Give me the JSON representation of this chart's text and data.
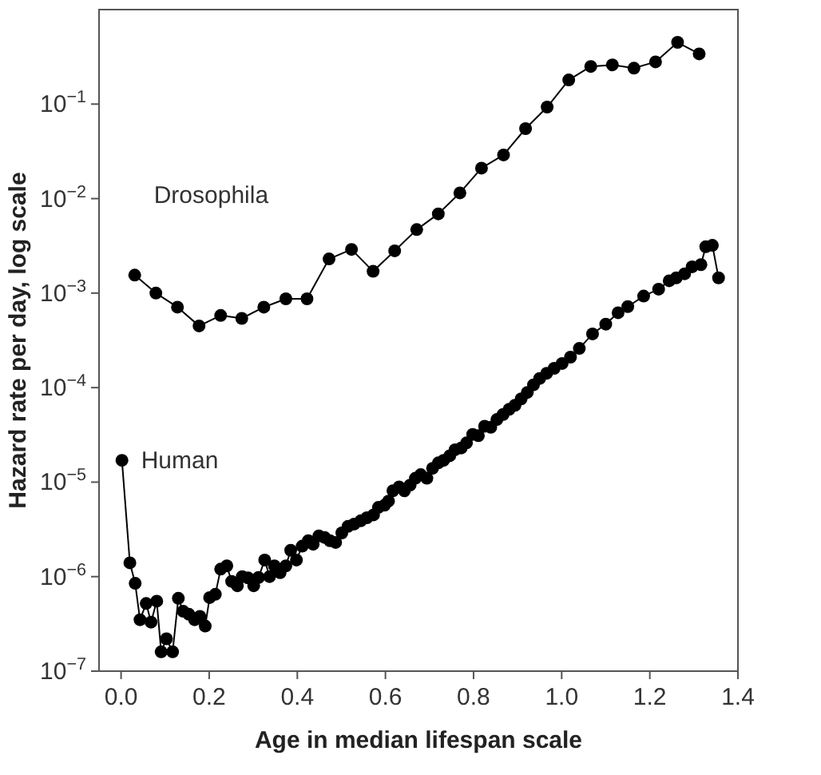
{
  "chart_data": {
    "type": "line",
    "xlabel": "Age in median lifespan scale",
    "ylabel": "Hazard rate per day, log scale",
    "log": "y",
    "marker": "circle",
    "line_style": "solid",
    "grid": false,
    "xlim": [
      -0.05,
      1.4
    ],
    "xticks": [
      {
        "value": 0,
        "label": "0.0"
      },
      0.2,
      0.4,
      0.6,
      0.8,
      {
        "value": 1,
        "label": "1.0"
      },
      1.2,
      1.4
    ],
    "ylim": [
      1e-07,
      1
    ],
    "yticks": [
      {
        "value": 1e-07,
        "label": "10$^{−7}$"
      },
      {
        "value": 1e-06,
        "label": "10$^{−6}$"
      },
      {
        "value": 1e-05,
        "label": "10$^{−5}$"
      },
      {
        "value": 0.0001,
        "label": "10$^{−4}$"
      },
      {
        "value": 0.001,
        "label": "10$^{−3}$"
      },
      {
        "value": 0.01,
        "label": "10$^{−2}$"
      },
      {
        "value": 0.1,
        "label": "10$^{−1}$"
      }
    ],
    "series": [
      {
        "name": "Drosophila",
        "color": "#000000",
        "x": [
          0.031,
          0.079,
          0.128,
          0.177,
          0.226,
          0.274,
          0.324,
          0.374,
          0.422,
          0.472,
          0.523,
          0.572,
          0.621,
          0.671,
          0.72,
          0.769,
          0.818,
          0.868,
          0.918,
          0.967,
          1.016,
          1.066,
          1.115,
          1.164,
          1.213,
          1.263,
          1.312
        ],
        "values": [
          0.00155,
          0.001,
          0.00071,
          0.00045,
          0.00058,
          0.00054,
          0.00071,
          0.00087,
          0.00087,
          0.0023,
          0.0029,
          0.0017,
          0.0028,
          0.0047,
          0.0069,
          0.0115,
          0.021,
          0.029,
          0.055,
          0.093,
          0.18,
          0.25,
          0.26,
          0.24,
          0.28,
          0.45,
          0.34
        ]
      },
      {
        "name": "Human",
        "color": "#000000",
        "x": [
          0.002,
          0.02,
          0.032,
          0.043,
          0.057,
          0.068,
          0.081,
          0.091,
          0.103,
          0.117,
          0.13,
          0.141,
          0.154,
          0.167,
          0.179,
          0.191,
          0.201,
          0.214,
          0.226,
          0.24,
          0.251,
          0.264,
          0.275,
          0.288,
          0.301,
          0.312,
          0.326,
          0.337,
          0.348,
          0.361,
          0.374,
          0.385,
          0.398,
          0.411,
          0.425,
          0.436,
          0.449,
          0.462,
          0.474,
          0.487,
          0.501,
          0.515,
          0.529,
          0.544,
          0.558,
          0.573,
          0.584,
          0.598,
          0.607,
          0.617,
          0.631,
          0.643,
          0.656,
          0.668,
          0.68,
          0.694,
          0.707,
          0.72,
          0.732,
          0.746,
          0.758,
          0.772,
          0.784,
          0.798,
          0.811,
          0.825,
          0.839,
          0.853,
          0.867,
          0.881,
          0.894,
          0.908,
          0.922,
          0.936,
          0.95,
          0.966,
          0.983,
          1.001,
          1.02,
          1.04,
          1.07,
          1.1,
          1.128,
          1.15,
          1.186,
          1.22,
          1.244,
          1.26,
          1.279,
          1.296,
          1.316,
          1.327,
          1.342,
          1.356
        ],
        "values": [
          1.7e-05,
          1.4e-06,
          8.5e-07,
          3.5e-07,
          5.2e-07,
          3.3e-07,
          5.5e-07,
          1.6e-07,
          2.2e-07,
          1.6e-07,
          5.9e-07,
          4.3e-07,
          4e-07,
          3.5e-07,
          3.8e-07,
          3e-07,
          6e-07,
          6.5e-07,
          1.2e-06,
          1.3e-06,
          8.9e-07,
          8e-07,
          1e-06,
          9.7e-07,
          8e-07,
          9.8e-07,
          1.5e-06,
          1e-06,
          1.3e-06,
          1.1e-06,
          1.3e-06,
          1.9e-06,
          1.5e-06,
          2.1e-06,
          2.4e-06,
          2.2e-06,
          2.7e-06,
          2.6e-06,
          2.4e-06,
          2.3e-06,
          2.9e-06,
          3.4e-06,
          3.6e-06,
          3.9e-06,
          4.2e-06,
          4.5e-06,
          5.4e-06,
          5.7e-06,
          6.3e-06,
          8.1e-06,
          8.9e-06,
          8.1e-06,
          9.3e-06,
          1.1e-05,
          1.2e-05,
          1.1e-05,
          1.4e-05,
          1.6e-05,
          1.7e-05,
          1.9e-05,
          2.2e-05,
          2.3e-05,
          2.6e-05,
          3.2e-05,
          3.1e-05,
          3.9e-05,
          3.8e-05,
          4.6e-05,
          5.2e-05,
          5.9e-05,
          6.5e-05,
          7.6e-05,
          8.9e-05,
          0.000107,
          0.000125,
          0.000142,
          0.00016,
          0.00018,
          0.00021,
          0.00026,
          0.00037,
          0.00047,
          0.00062,
          0.00072,
          0.00093,
          0.0011,
          0.00135,
          0.00145,
          0.0016,
          0.0019,
          0.002,
          0.0031,
          0.0032,
          0.00145
        ]
      }
    ]
  }
}
